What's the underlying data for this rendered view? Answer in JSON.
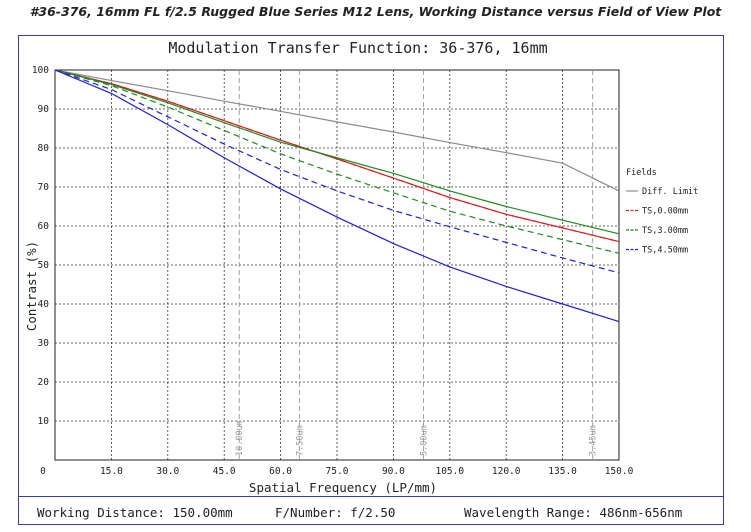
{
  "page_title": "#36-376, 16mm FL f/2.5 Rugged Blue Series M12 Lens, Working Distance versus Field of View Plot",
  "footer": {
    "working_distance": "Working Distance: 150.00mm",
    "f_number": "F/Number: f/2.50",
    "wavelength_range": "Wavelength Range: 486nm-656nm"
  },
  "colors": {
    "frame": "#3a3aa8",
    "diff_limit": "#8a8a8a",
    "ts_0": "#d42020",
    "ts_3": "#1f8a1f",
    "ts_4_5": "#2020d4"
  },
  "chart_data": {
    "type": "line",
    "title": "Modulation Transfer Function: 36-376, 16mm",
    "xlabel": "Spatial Frequency (LP/mm)",
    "ylabel": "Contrast (%)",
    "xlim": [
      0,
      150
    ],
    "ylim": [
      0,
      100
    ],
    "x_ticks": [
      "0",
      "15.0",
      "30.0",
      "45.0",
      "60.0",
      "75.0",
      "90.0",
      "105.0",
      "120.0",
      "135.0",
      "150.0"
    ],
    "y_ticks": [
      "10",
      "20",
      "30",
      "40",
      "50",
      "60",
      "70",
      "80",
      "90",
      "100"
    ],
    "grid": true,
    "legend": {
      "title": "Fields",
      "placement": "right",
      "entries": [
        "Diff. Limit",
        "TS,0.00mm",
        "TS,3.00mm",
        "TS,4.50mm"
      ]
    },
    "markers": [
      {
        "x": 49,
        "label": "10.00um"
      },
      {
        "x": 65,
        "label": "7.50um"
      },
      {
        "x": 98,
        "label": "5.00um"
      },
      {
        "x": 143,
        "label": "3.45um"
      }
    ],
    "x": [
      0,
      15,
      30,
      45,
      60,
      75,
      90,
      105,
      120,
      135,
      150
    ],
    "series": [
      {
        "name": "Diff. Limit",
        "style": "solid",
        "color_key": "diff_limit",
        "values": [
          100,
          97.3,
          94.7,
          92.0,
          89.4,
          86.7,
          84.1,
          81.4,
          78.8,
          76.1,
          69.0
        ]
      },
      {
        "name": "TS,0.00mm T",
        "style": "solid",
        "color_key": "ts_0",
        "values": [
          100,
          96.5,
          92.0,
          87.0,
          82.0,
          77.2,
          72.3,
          67.3,
          63.0,
          59.5,
          56.0
        ]
      },
      {
        "name": "TS,0.00mm S",
        "style": "dashed",
        "color_key": "ts_0",
        "values": [
          100,
          96.5,
          92.0,
          87.0,
          82.0,
          77.2,
          72.3,
          67.3,
          63.0,
          59.5,
          56.0
        ]
      },
      {
        "name": "TS,3.00mm T",
        "style": "solid",
        "color_key": "ts_3",
        "values": [
          100,
          96.3,
          91.6,
          86.5,
          81.5,
          77.5,
          73.5,
          69.0,
          65.0,
          61.5,
          58.0
        ]
      },
      {
        "name": "TS,3.00mm S",
        "style": "dashed",
        "color_key": "ts_3",
        "values": [
          100,
          96.0,
          90.5,
          84.5,
          78.5,
          73.3,
          68.5,
          63.8,
          60.0,
          56.5,
          53.0
        ]
      },
      {
        "name": "TS,4.50mm T",
        "style": "solid",
        "color_key": "ts_4_5",
        "values": [
          100,
          94.0,
          86.0,
          77.5,
          69.5,
          62.3,
          55.5,
          49.5,
          44.5,
          40.0,
          35.5
        ]
      },
      {
        "name": "TS,4.50mm S",
        "style": "dashed",
        "color_key": "ts_4_5",
        "values": [
          100,
          95.0,
          88.0,
          81.0,
          74.5,
          69.0,
          64.0,
          59.8,
          55.8,
          51.8,
          48.0
        ]
      }
    ]
  }
}
